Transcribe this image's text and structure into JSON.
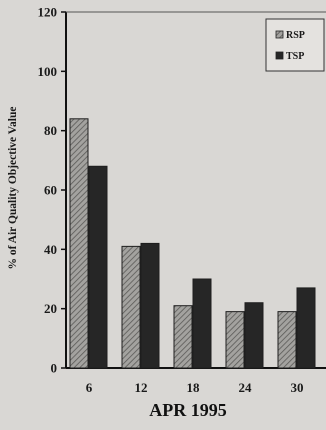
{
  "chart_data": {
    "type": "bar",
    "categories": [
      "6",
      "12",
      "18",
      "24",
      "30"
    ],
    "series": [
      {
        "name": "RSP",
        "values": [
          84,
          41,
          21,
          19,
          19
        ],
        "color": "#8f8e8c",
        "pattern": "hatched"
      },
      {
        "name": "TSP",
        "values": [
          68,
          42,
          30,
          22,
          27
        ],
        "color": "#262626",
        "pattern": "solid"
      }
    ],
    "xlabel": "APR 1995",
    "ylabel": "% of Air Quality Objective Value",
    "ylim": [
      0,
      120
    ],
    "yticks": [
      "0",
      "20",
      "40",
      "60",
      "80",
      "100",
      "120"
    ],
    "legend_position": "top-right",
    "grid": false
  }
}
